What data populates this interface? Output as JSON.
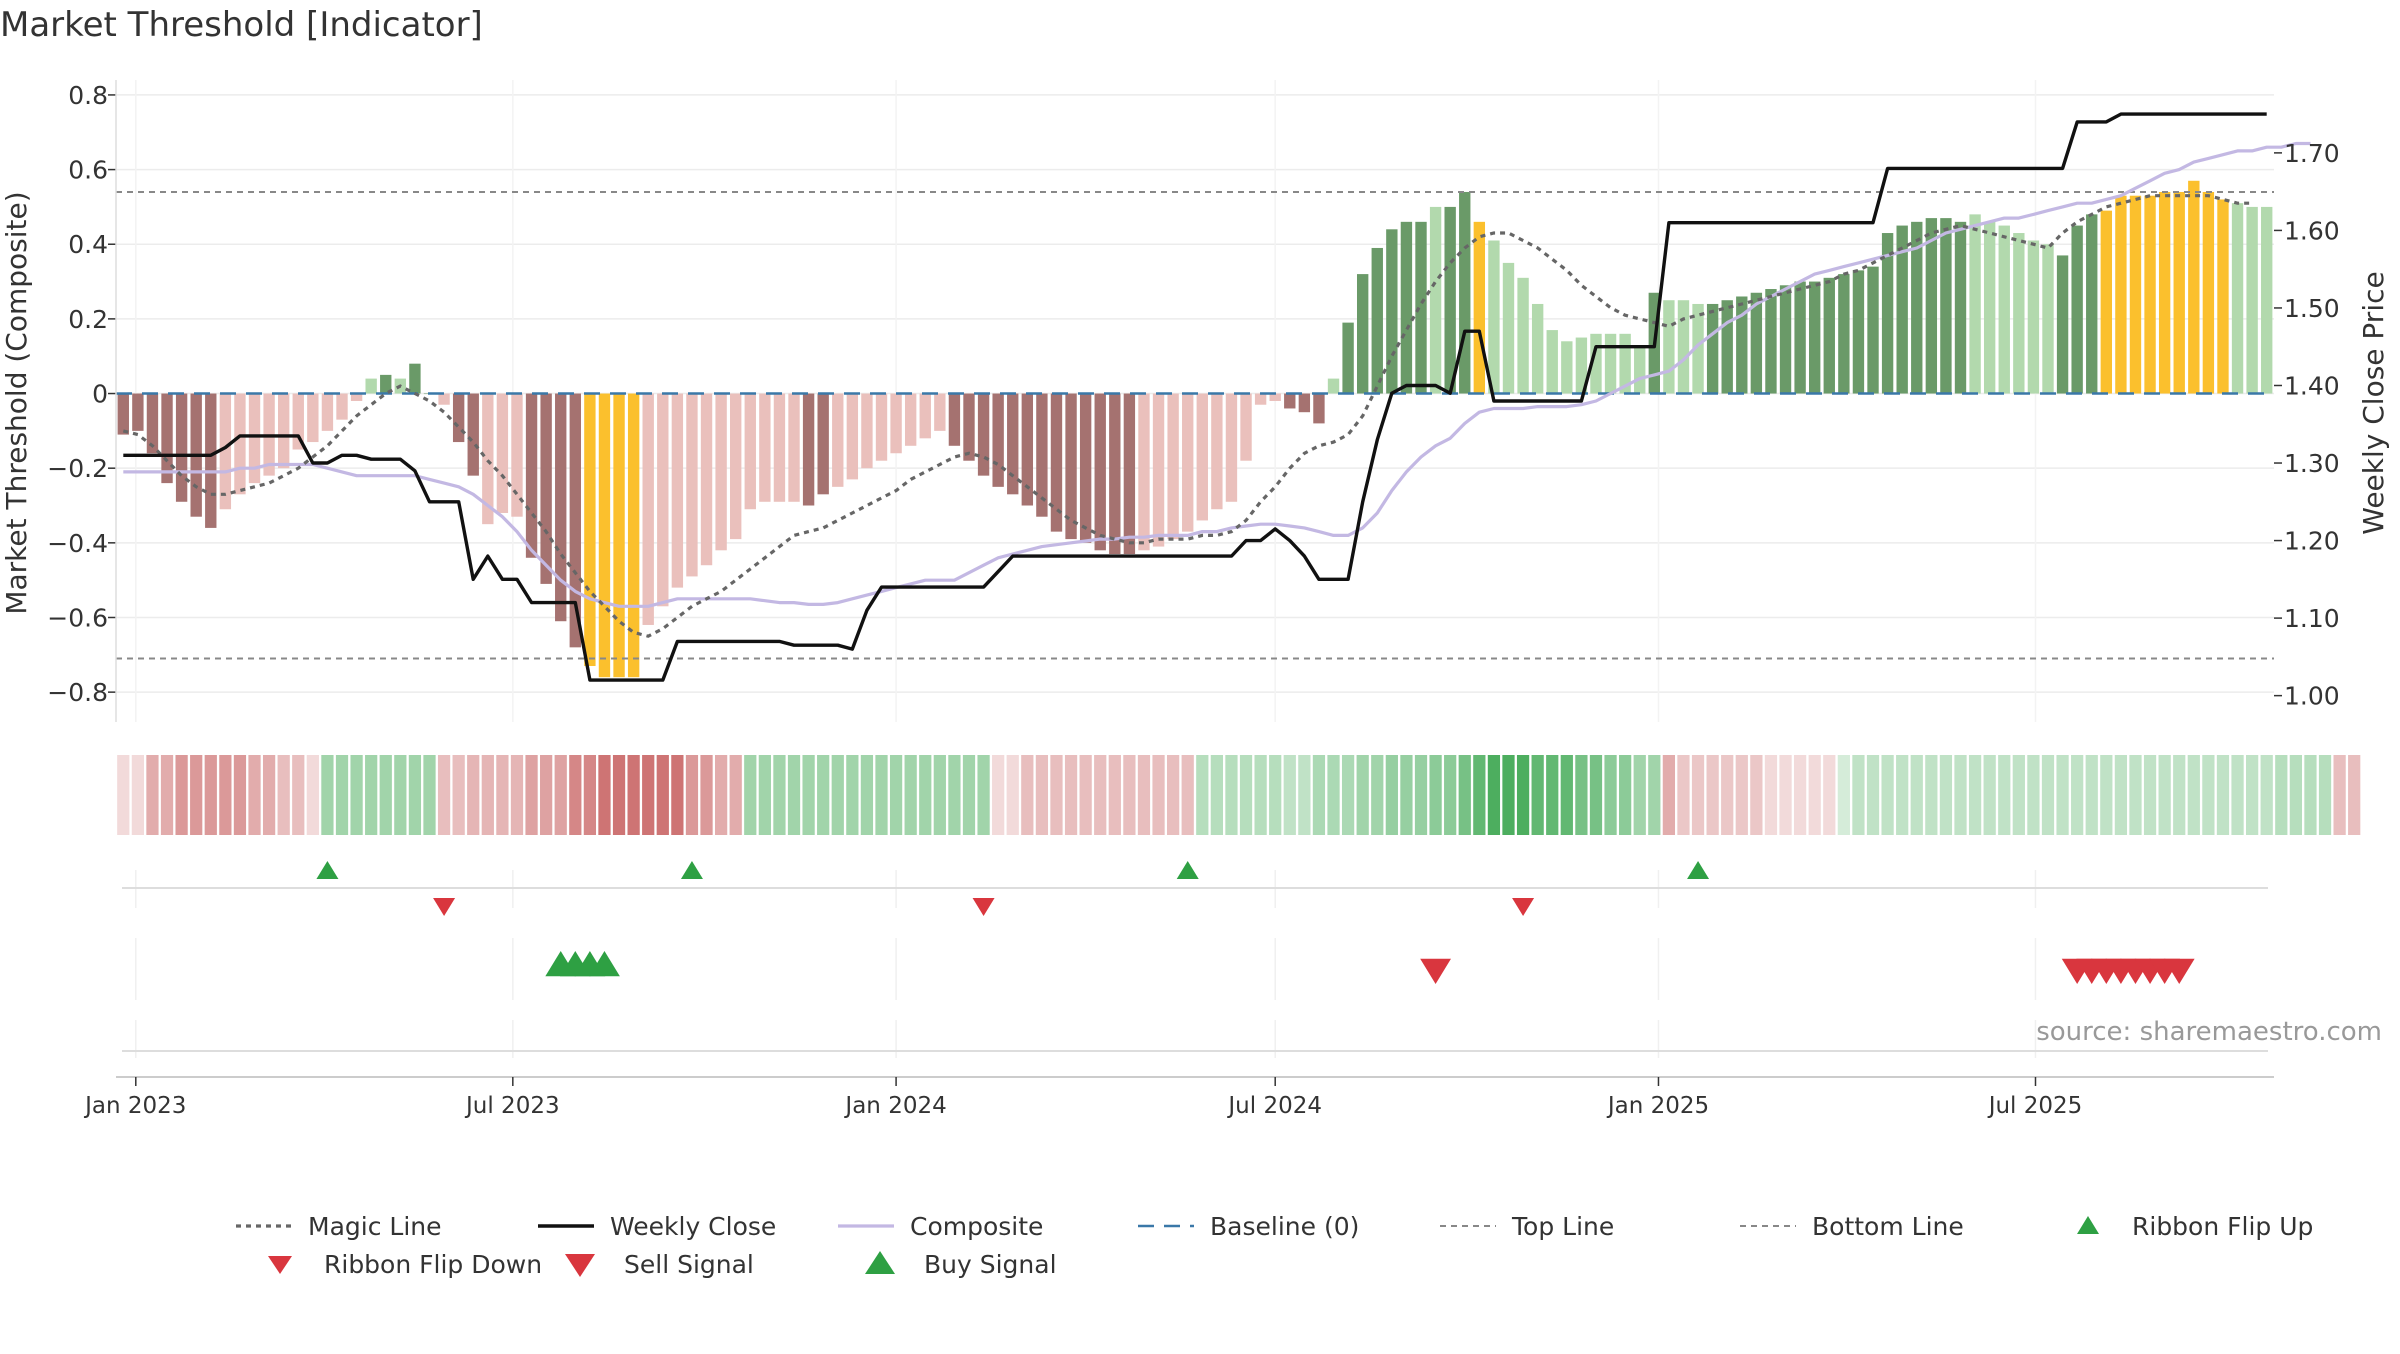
{
  "chart_data": {
    "type": "bar",
    "title": "Market Threshold [Indicator]",
    "ylabel": "Market Threshold (Composite)",
    "ylabel_right": "Weekly Close Price",
    "ylim": [
      -0.88,
      0.84
    ],
    "y2lim": [
      0.966,
      1.794
    ],
    "yticks": [
      {
        "v": 0.8,
        "label": "0.8"
      },
      {
        "v": 0.6,
        "label": "0.6"
      },
      {
        "v": 0.4,
        "label": "0.4"
      },
      {
        "v": 0.2,
        "label": "0.2"
      },
      {
        "v": 0,
        "label": "0"
      },
      {
        "v": -0.2,
        "label": "−0.2"
      },
      {
        "v": -0.4,
        "label": "−0.4"
      },
      {
        "v": -0.6,
        "label": "−0.6"
      },
      {
        "v": -0.8,
        "label": "−0.8"
      }
    ],
    "y2ticks": [
      {
        "v": 1.7,
        "label": "1.70"
      },
      {
        "v": 1.6,
        "label": "1.60"
      },
      {
        "v": 1.5,
        "label": "1.50"
      },
      {
        "v": 1.4,
        "label": "1.40"
      },
      {
        "v": 1.3,
        "label": "1.30"
      },
      {
        "v": 1.2,
        "label": "1.20"
      },
      {
        "v": 1.1,
        "label": "1.10"
      },
      {
        "v": 1.0,
        "label": "1.00"
      }
    ],
    "x_start": "2022-12-26",
    "week_days": 7,
    "xticks": [
      {
        "date": "2023-01-01",
        "label": "Jan 2023"
      },
      {
        "date": "2023-07-01",
        "label": "Jul 2023"
      },
      {
        "date": "2024-01-01",
        "label": "Jan 2024"
      },
      {
        "date": "2024-07-01",
        "label": "Jul 2024"
      },
      {
        "date": "2025-01-01",
        "label": "Jan 2025"
      },
      {
        "date": "2025-07-01",
        "label": "Jul 2025"
      }
    ],
    "top_line": 0.54,
    "bottom_line": -0.71,
    "baseline": 0,
    "source": "source: sharemaestro.com",
    "colors": {
      "red_dark": "#a57270",
      "red_light": "#eac0bc",
      "green_dark": "#6a9a68",
      "green_light": "#b2d9ad",
      "extreme": "#fbc02d",
      "magic": "#666666",
      "close": "#111111",
      "composite": "#c3b8e3",
      "baseline": "#3a78a8",
      "threshold": "#888888",
      "buy": "#2ea043",
      "sell": "#d9363e"
    },
    "bar_values": [
      -0.11,
      -0.1,
      -0.16,
      -0.24,
      -0.29,
      -0.33,
      -0.36,
      -0.31,
      -0.27,
      -0.24,
      -0.22,
      -0.2,
      -0.15,
      -0.13,
      -0.1,
      -0.07,
      -0.02,
      0.04,
      0.05,
      0.04,
      0.08,
      0.0,
      -0.03,
      -0.13,
      -0.22,
      -0.35,
      -0.32,
      -0.33,
      -0.44,
      -0.51,
      -0.61,
      -0.68,
      -0.73,
      -0.76,
      -0.76,
      -0.76,
      -0.62,
      -0.57,
      -0.52,
      -0.49,
      -0.46,
      -0.42,
      -0.39,
      -0.31,
      -0.29,
      -0.29,
      -0.29,
      -0.3,
      -0.27,
      -0.25,
      -0.23,
      -0.2,
      -0.18,
      -0.16,
      -0.14,
      -0.12,
      -0.1,
      -0.14,
      -0.18,
      -0.22,
      -0.25,
      -0.27,
      -0.3,
      -0.33,
      -0.37,
      -0.39,
      -0.4,
      -0.42,
      -0.43,
      -0.43,
      -0.42,
      -0.41,
      -0.39,
      -0.37,
      -0.34,
      -0.31,
      -0.29,
      -0.18,
      -0.03,
      -0.02,
      -0.04,
      -0.05,
      -0.08,
      0.04,
      0.19,
      0.32,
      0.39,
      0.44,
      0.46,
      0.46,
      0.5,
      0.5,
      0.54,
      0.46,
      0.41,
      0.35,
      0.31,
      0.24,
      0.17,
      0.14,
      0.15,
      0.16,
      0.16,
      0.16,
      0.13,
      0.27,
      0.25,
      0.25,
      0.24,
      0.24,
      0.25,
      0.26,
      0.27,
      0.28,
      0.29,
      0.3,
      0.3,
      0.31,
      0.32,
      0.33,
      0.34,
      0.43,
      0.45,
      0.46,
      0.47,
      0.47,
      0.46,
      0.48,
      0.46,
      0.45,
      0.43,
      0.41,
      0.4,
      0.37,
      0.45,
      0.48,
      0.49,
      0.53,
      0.53,
      0.53,
      0.54,
      0.54,
      0.57,
      0.54,
      0.52,
      0.51,
      0.5,
      0.5
    ],
    "bar_tones": [
      "d",
      "d",
      "d",
      "d",
      "d",
      "d",
      "d",
      "l",
      "l",
      "l",
      "l",
      "l",
      "l",
      "l",
      "l",
      "l",
      "l",
      "l",
      "d",
      "l",
      "d",
      "d",
      "l",
      "d",
      "d",
      "l",
      "l",
      "l",
      "d",
      "d",
      "d",
      "d",
      "e",
      "e",
      "e",
      "e",
      "l",
      "l",
      "l",
      "l",
      "l",
      "l",
      "l",
      "l",
      "l",
      "l",
      "l",
      "d",
      "d",
      "l",
      "l",
      "l",
      "l",
      "l",
      "l",
      "l",
      "l",
      "d",
      "d",
      "d",
      "d",
      "d",
      "d",
      "d",
      "d",
      "d",
      "d",
      "d",
      "d",
      "d",
      "l",
      "l",
      "l",
      "l",
      "l",
      "l",
      "l",
      "l",
      "l",
      "l",
      "d",
      "d",
      "d",
      "l",
      "d",
      "d",
      "d",
      "d",
      "d",
      "d",
      "l",
      "d",
      "d",
      "e",
      "l",
      "l",
      "l",
      "l",
      "l",
      "l",
      "l",
      "l",
      "l",
      "l",
      "l",
      "d",
      "l",
      "l",
      "l",
      "d",
      "d",
      "d",
      "d",
      "d",
      "d",
      "d",
      "d",
      "d",
      "d",
      "d",
      "d",
      "d",
      "d",
      "d",
      "d",
      "d",
      "d",
      "l",
      "l",
      "l",
      "l",
      "l",
      "l",
      "d",
      "d",
      "d",
      "e",
      "e",
      "e",
      "e",
      "e",
      "e",
      "e",
      "e",
      "e",
      "l",
      "l",
      "l"
    ],
    "close_values": [
      1.31,
      1.31,
      1.31,
      1.31,
      1.31,
      1.31,
      1.31,
      1.32,
      1.335,
      1.335,
      1.335,
      1.335,
      1.335,
      1.3,
      1.3,
      1.31,
      1.31,
      1.305,
      1.305,
      1.305,
      1.29,
      1.25,
      1.25,
      1.25,
      1.15,
      1.18,
      1.15,
      1.15,
      1.12,
      1.12,
      1.12,
      1.12,
      1.02,
      1.02,
      1.02,
      1.02,
      1.02,
      1.02,
      1.07,
      1.07,
      1.07,
      1.07,
      1.07,
      1.07,
      1.07,
      1.07,
      1.065,
      1.065,
      1.065,
      1.065,
      1.06,
      1.11,
      1.14,
      1.14,
      1.14,
      1.14,
      1.14,
      1.14,
      1.14,
      1.14,
      1.16,
      1.18,
      1.18,
      1.18,
      1.18,
      1.18,
      1.18,
      1.18,
      1.18,
      1.18,
      1.18,
      1.18,
      1.18,
      1.18,
      1.18,
      1.18,
      1.18,
      1.2,
      1.2,
      1.215,
      1.2,
      1.18,
      1.15,
      1.15,
      1.15,
      1.25,
      1.33,
      1.39,
      1.4,
      1.4,
      1.4,
      1.39,
      1.47,
      1.47,
      1.38,
      1.38,
      1.38,
      1.38,
      1.38,
      1.38,
      1.38,
      1.45,
      1.45,
      1.45,
      1.45,
      1.45,
      1.61,
      1.61,
      1.61,
      1.61,
      1.61,
      1.61,
      1.61,
      1.61,
      1.61,
      1.61,
      1.61,
      1.61,
      1.61,
      1.61,
      1.61,
      1.68,
      1.68,
      1.68,
      1.68,
      1.68,
      1.68,
      1.68,
      1.68,
      1.68,
      1.68,
      1.68,
      1.68,
      1.68,
      1.74,
      1.74,
      1.74,
      1.75,
      1.75,
      1.75,
      1.75,
      1.75,
      1.75,
      1.75,
      1.75,
      1.75,
      1.75,
      1.75
    ],
    "magic_values": [
      -0.1,
      -0.11,
      -0.14,
      -0.18,
      -0.22,
      -0.25,
      -0.27,
      -0.27,
      -0.26,
      -0.25,
      -0.24,
      -0.22,
      -0.2,
      -0.17,
      -0.14,
      -0.1,
      -0.06,
      -0.03,
      0.0,
      0.02,
      0.0,
      -0.02,
      -0.05,
      -0.09,
      -0.13,
      -0.18,
      -0.22,
      -0.27,
      -0.32,
      -0.37,
      -0.43,
      -0.48,
      -0.53,
      -0.57,
      -0.61,
      -0.64,
      -0.65,
      -0.63,
      -0.6,
      -0.57,
      -0.55,
      -0.53,
      -0.5,
      -0.47,
      -0.44,
      -0.41,
      -0.38,
      -0.37,
      -0.36,
      -0.34,
      -0.32,
      -0.3,
      -0.28,
      -0.26,
      -0.23,
      -0.21,
      -0.19,
      -0.17,
      -0.16,
      -0.17,
      -0.19,
      -0.22,
      -0.25,
      -0.28,
      -0.31,
      -0.34,
      -0.36,
      -0.38,
      -0.39,
      -0.4,
      -0.4,
      -0.39,
      -0.39,
      -0.39,
      -0.38,
      -0.38,
      -0.37,
      -0.34,
      -0.29,
      -0.25,
      -0.2,
      -0.16,
      -0.14,
      -0.13,
      -0.11,
      -0.06,
      0.02,
      0.1,
      0.17,
      0.24,
      0.3,
      0.35,
      0.39,
      0.42,
      0.43,
      0.43,
      0.41,
      0.39,
      0.36,
      0.33,
      0.29,
      0.26,
      0.23,
      0.21,
      0.2,
      0.19,
      0.18,
      0.2,
      0.21,
      0.22,
      0.23,
      0.24,
      0.25,
      0.26,
      0.27,
      0.28,
      0.29,
      0.3,
      0.32,
      0.33,
      0.35,
      0.37,
      0.39,
      0.41,
      0.43,
      0.44,
      0.45,
      0.44,
      0.43,
      0.42,
      0.41,
      0.4,
      0.39,
      0.43,
      0.46,
      0.48,
      0.5,
      0.51,
      0.52,
      0.53,
      0.53,
      0.53,
      0.53,
      0.53,
      0.52,
      0.51,
      0.51
    ],
    "composite_values": [
      -0.21,
      -0.21,
      -0.21,
      -0.21,
      -0.21,
      -0.21,
      -0.21,
      -0.21,
      -0.2,
      -0.2,
      -0.19,
      -0.19,
      -0.19,
      -0.19,
      -0.2,
      -0.21,
      -0.22,
      -0.22,
      -0.22,
      -0.22,
      -0.22,
      -0.23,
      -0.24,
      -0.25,
      -0.27,
      -0.3,
      -0.33,
      -0.37,
      -0.42,
      -0.46,
      -0.5,
      -0.53,
      -0.55,
      -0.56,
      -0.57,
      -0.57,
      -0.57,
      -0.56,
      -0.55,
      -0.55,
      -0.55,
      -0.55,
      -0.55,
      -0.55,
      -0.555,
      -0.56,
      -0.56,
      -0.565,
      -0.565,
      -0.56,
      -0.55,
      -0.54,
      -0.53,
      -0.52,
      -0.51,
      -0.5,
      -0.5,
      -0.5,
      -0.48,
      -0.46,
      -0.44,
      -0.43,
      -0.42,
      -0.41,
      -0.405,
      -0.4,
      -0.395,
      -0.39,
      -0.39,
      -0.385,
      -0.385,
      -0.38,
      -0.38,
      -0.38,
      -0.37,
      -0.37,
      -0.36,
      -0.355,
      -0.35,
      -0.35,
      -0.355,
      -0.36,
      -0.37,
      -0.38,
      -0.38,
      -0.36,
      -0.32,
      -0.26,
      -0.21,
      -0.17,
      -0.14,
      -0.12,
      -0.08,
      -0.05,
      -0.04,
      -0.04,
      -0.04,
      -0.035,
      -0.035,
      -0.035,
      -0.03,
      -0.02,
      0.0,
      0.02,
      0.04,
      0.05,
      0.06,
      0.09,
      0.13,
      0.16,
      0.19,
      0.21,
      0.24,
      0.26,
      0.28,
      0.3,
      0.32,
      0.33,
      0.34,
      0.35,
      0.36,
      0.37,
      0.38,
      0.39,
      0.41,
      0.43,
      0.44,
      0.45,
      0.46,
      0.47,
      0.47,
      0.48,
      0.49,
      0.5,
      0.51,
      0.51,
      0.52,
      0.53,
      0.55,
      0.57,
      0.59,
      0.6,
      0.62,
      0.63,
      0.64,
      0.65,
      0.65,
      0.66,
      0.66,
      0.67,
      0.67
    ],
    "ribbon_alpha": [
      0.2,
      0.2,
      0.45,
      0.45,
      0.55,
      0.55,
      0.55,
      0.55,
      0.55,
      0.45,
      0.45,
      0.35,
      0.35,
      0.2,
      0.45,
      0.45,
      0.45,
      0.45,
      0.45,
      0.45,
      0.45,
      0.45,
      0.35,
      0.35,
      0.4,
      0.4,
      0.4,
      0.4,
      0.5,
      0.5,
      0.5,
      0.65,
      0.65,
      0.75,
      0.75,
      0.75,
      0.75,
      0.75,
      0.75,
      0.55,
      0.55,
      0.45,
      0.45,
      0.45,
      0.45,
      0.45,
      0.45,
      0.45,
      0.45,
      0.45,
      0.45,
      0.45,
      0.45,
      0.45,
      0.45,
      0.45,
      0.45,
      0.45,
      0.45,
      0.45,
      0.2,
      0.2,
      0.35,
      0.35,
      0.35,
      0.35,
      0.35,
      0.35,
      0.35,
      0.35,
      0.35,
      0.35,
      0.35,
      0.35,
      0.35,
      0.35,
      0.35,
      0.35,
      0.35,
      0.35,
      0.3,
      0.3,
      0.4,
      0.4,
      0.4,
      0.45,
      0.45,
      0.5,
      0.5,
      0.5,
      0.55,
      0.55,
      0.65,
      0.75,
      0.85,
      0.85,
      0.85,
      0.75,
      0.75,
      0.75,
      0.65,
      0.65,
      0.55,
      0.55,
      0.45,
      0.45,
      0.45,
      0.3,
      0.3,
      0.3,
      0.3,
      0.3,
      0.3,
      0.2,
      0.2,
      0.2,
      0.2,
      0.2,
      0.2,
      0.3,
      0.3,
      0.3,
      0.3,
      0.3,
      0.3,
      0.3,
      0.3,
      0.3,
      0.3,
      0.3,
      0.3,
      0.3,
      0.3,
      0.3,
      0.3,
      0.3,
      0.3,
      0.3,
      0.3,
      0.3,
      0.3,
      0.3,
      0.3,
      0.3,
      0.3,
      0.3,
      0.3,
      0.3,
      0.35,
      0.35,
      0.35,
      0.35,
      0.35,
      0.35
    ],
    "ribbon_sign": [
      "r",
      "r",
      "r",
      "r",
      "r",
      "r",
      "r",
      "r",
      "r",
      "r",
      "r",
      "r",
      "r",
      "r",
      "g",
      "g",
      "g",
      "g",
      "g",
      "g",
      "g",
      "g",
      "r",
      "r",
      "r",
      "r",
      "r",
      "r",
      "r",
      "r",
      "r",
      "r",
      "r",
      "r",
      "r",
      "r",
      "r",
      "r",
      "r",
      "r",
      "r",
      "r",
      "r",
      "g",
      "g",
      "g",
      "g",
      "g",
      "g",
      "g",
      "g",
      "g",
      "g",
      "g",
      "g",
      "g",
      "g",
      "g",
      "g",
      "g",
      "r",
      "r",
      "r",
      "r",
      "r",
      "r",
      "r",
      "r",
      "r",
      "r",
      "r",
      "r",
      "r",
      "r",
      "g",
      "g",
      "g",
      "g",
      "g",
      "g",
      "g",
      "g",
      "g",
      "g",
      "g",
      "g",
      "g",
      "g",
      "g",
      "g",
      "g",
      "g",
      "g",
      "g",
      "g",
      "g",
      "g",
      "g",
      "g",
      "g",
      "g",
      "g",
      "g",
      "g",
      "g",
      "g",
      "r",
      "r",
      "r",
      "r",
      "r",
      "r",
      "r",
      "r",
      "r",
      "r",
      "r",
      "r",
      "g",
      "g",
      "g",
      "g",
      "g",
      "g",
      "g",
      "g",
      "g",
      "g",
      "g",
      "g",
      "g",
      "g",
      "g",
      "g",
      "g",
      "g",
      "g",
      "g",
      "g",
      "g",
      "g",
      "g",
      "g",
      "g",
      "g",
      "g",
      "g",
      "g",
      "g",
      "g",
      "g",
      "g"
    ],
    "ribbon_flip_up_weeks": [
      14,
      39,
      73,
      108
    ],
    "ribbon_flip_down_weeks": [
      22,
      59,
      96
    ],
    "buy_signal_weeks": [
      30,
      31,
      32,
      33
    ],
    "sell_signal_weeks": [
      90,
      134,
      135,
      136,
      137,
      138,
      139,
      140,
      141
    ],
    "legend": [
      {
        "key": "magic",
        "label": "Magic Line"
      },
      {
        "key": "close",
        "label": "Weekly Close"
      },
      {
        "key": "composite",
        "label": "Composite"
      },
      {
        "key": "baseline",
        "label": "Baseline (0)"
      },
      {
        "key": "top",
        "label": "Top Line"
      },
      {
        "key": "bottom",
        "label": "Bottom Line"
      },
      {
        "key": "flip_up",
        "label": "Ribbon Flip Up"
      },
      {
        "key": "flip_down",
        "label": "Ribbon Flip Down"
      },
      {
        "key": "sell",
        "label": "Sell Signal"
      },
      {
        "key": "buy",
        "label": "Buy Signal"
      }
    ],
    "grid": true,
    "legend_position": "bottom"
  }
}
